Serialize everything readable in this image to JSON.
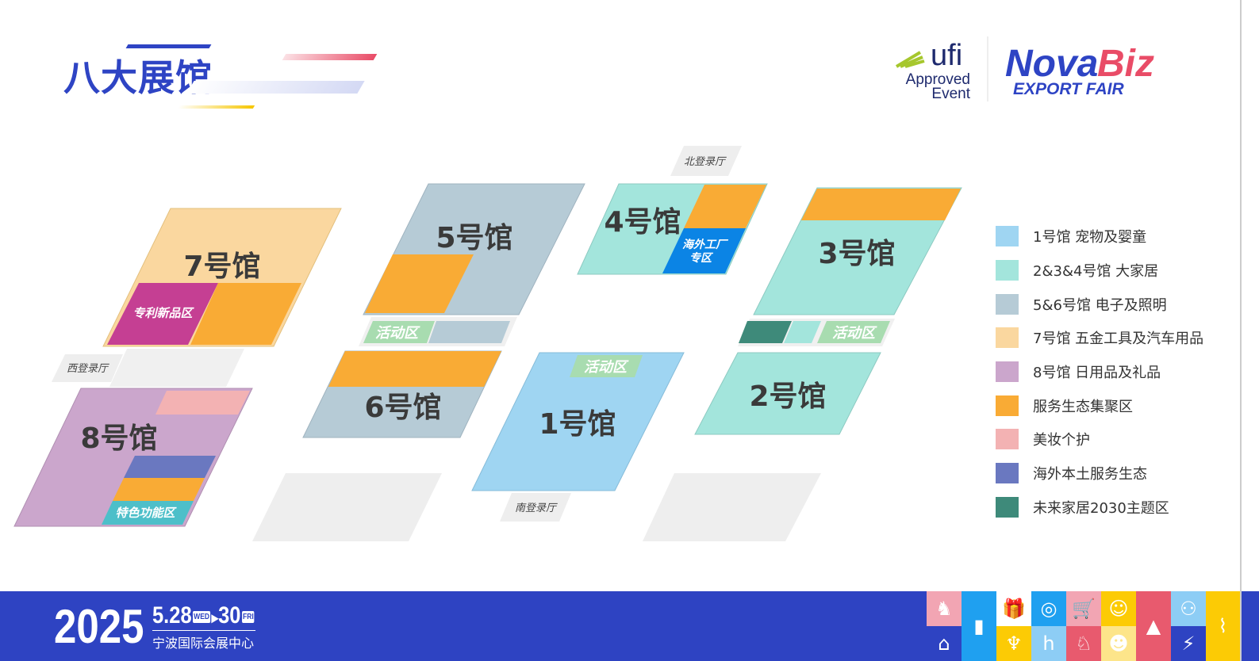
{
  "title": "八大展馆",
  "logos": {
    "ufi": "ufi",
    "ufi_sub1": "Approved",
    "ufi_sub2": "Event",
    "brand1": "Nova",
    "brand2": "Biz",
    "brand_sub": "EXPORT FAIR"
  },
  "halls": {
    "h1": "1号馆",
    "h2": "2号馆",
    "h3": "3号馆",
    "h4": "4号馆",
    "h5": "5号馆",
    "h6": "6号馆",
    "h7": "7号馆",
    "h8": "8号馆"
  },
  "zones": {
    "patent": "专利新品区",
    "overseas_factory_1": "海外工厂",
    "overseas_factory_2": "专区",
    "special": "特色功能区",
    "activity": "活动区"
  },
  "entries": {
    "north": "北登录厅",
    "south": "南登录厅",
    "west": "西登录厅"
  },
  "legend": [
    {
      "label": "1号馆 宠物及婴童",
      "color": "#9fd5f2"
    },
    {
      "label": "2&3&4号馆 大家居",
      "color": "#a3e5dc"
    },
    {
      "label": "5&6号馆 电子及照明",
      "color": "#b6cbd6"
    },
    {
      "label": "7号馆 五金工具及汽车用品",
      "color": "#fad79f"
    },
    {
      "label": "8号馆 日用品及礼品",
      "color": "#cba6cc"
    },
    {
      "label": "服务生态集聚区",
      "color": "#f9ab35"
    },
    {
      "label": "美妆个护",
      "color": "#f3b2b3"
    },
    {
      "label": "海外本土服务生态",
      "color": "#6a78c0"
    },
    {
      "label": "未来家居2030主题区",
      "color": "#3e8a7a"
    }
  ],
  "footer": {
    "year": "2025",
    "date_start": "5.28",
    "day_start": "WED",
    "arrow": "▸",
    "date_end": "30",
    "day_end": "FRI",
    "venue": "宁波国际会展中心"
  },
  "footer_icons": [
    "rocking-horse",
    "tower-fan",
    "gift",
    "washing-machine",
    "shopping-cart",
    "shopping-bag",
    "floor-lamp",
    "handshake",
    "lamp",
    "armchair",
    "blender",
    "chair",
    "dog",
    "chat",
    "charger"
  ]
}
